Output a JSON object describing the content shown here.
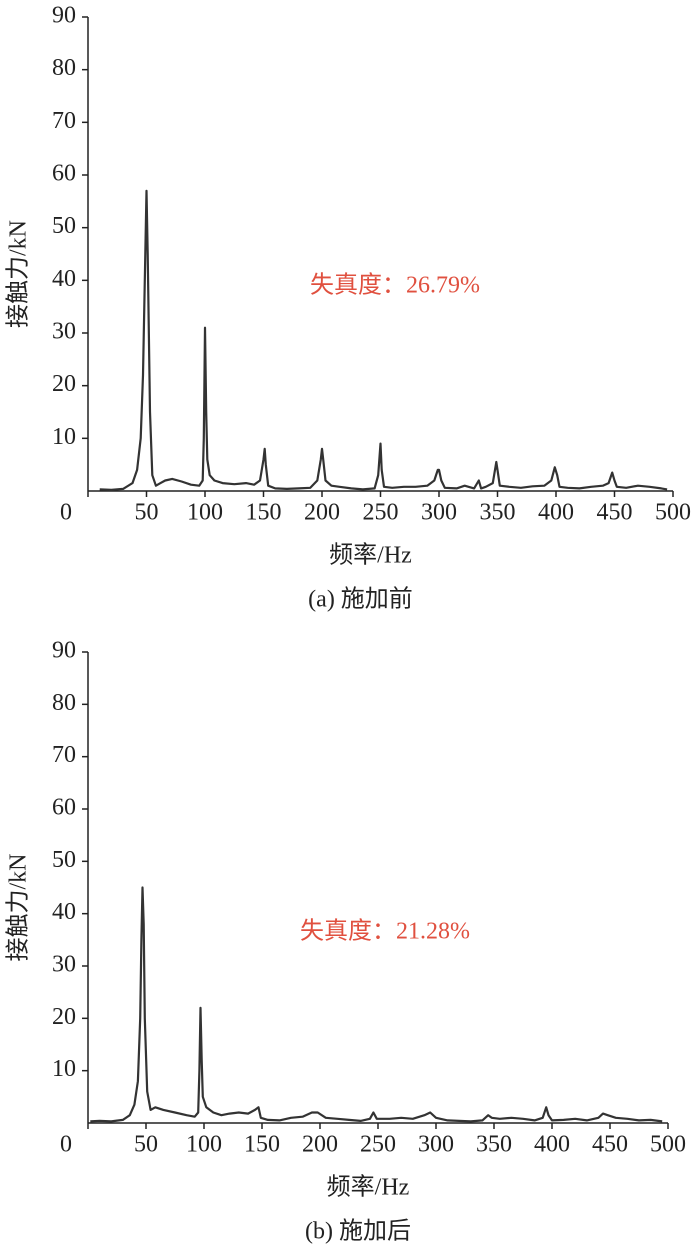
{
  "chart_data": [
    {
      "type": "line",
      "caption": "(a) 施加前",
      "xlabel": "频率/Hz",
      "ylabel": "接触力/kN",
      "annotation": "失真度：26.79%",
      "annotation_color": "#e0503f",
      "color": "#333333",
      "xlim": [
        0,
        500
      ],
      "ylim": [
        0,
        90
      ],
      "xticks": [
        0,
        50,
        100,
        150,
        200,
        250,
        300,
        350,
        400,
        450,
        500
      ],
      "yticks": [
        10,
        20,
        30,
        40,
        50,
        60,
        70,
        80,
        90
      ],
      "x": [
        10,
        20,
        30,
        38,
        42,
        45,
        47,
        49,
        50,
        51,
        53,
        55,
        58,
        62,
        66,
        72,
        80,
        88,
        95,
        98,
        99,
        100,
        101,
        102,
        104,
        108,
        115,
        125,
        135,
        142,
        147,
        150,
        151,
        152,
        154,
        160,
        170,
        180,
        190,
        196,
        199,
        200,
        201,
        203,
        208,
        215,
        225,
        235,
        245,
        248,
        250,
        251,
        253,
        260,
        270,
        280,
        290,
        296,
        299,
        300,
        302,
        305,
        315,
        322,
        330,
        334,
        336,
        340,
        346,
        349,
        350,
        352,
        360,
        370,
        380,
        390,
        396,
        399,
        401,
        403,
        410,
        420,
        430,
        440,
        445,
        448,
        450,
        452,
        460,
        470,
        480,
        490,
        495
      ],
      "values": [
        0.3,
        0.2,
        0.4,
        1.5,
        4,
        10,
        22,
        45,
        57,
        45,
        15,
        3,
        1,
        1.5,
        2,
        2.3,
        1.8,
        1.2,
        1,
        2,
        10,
        31,
        15,
        6,
        3,
        2,
        1.5,
        1.3,
        1.5,
        1.2,
        2,
        6,
        8,
        5,
        1,
        0.5,
        0.4,
        0.5,
        0.6,
        2,
        6,
        8,
        6,
        2,
        1,
        0.8,
        0.5,
        0.3,
        0.5,
        3,
        9,
        4,
        0.8,
        0.6,
        0.8,
        0.8,
        1,
        2,
        4,
        4,
        2,
        0.6,
        0.5,
        1,
        0.5,
        2,
        0.5,
        0.8,
        1.5,
        5.5,
        4,
        1,
        0.8,
        0.6,
        0.9,
        1,
        2,
        4.5,
        3,
        0.8,
        0.6,
        0.5,
        0.8,
        1,
        1.5,
        3.5,
        2,
        0.8,
        0.6,
        1,
        0.8,
        0.5,
        0.3
      ]
    },
    {
      "type": "line",
      "caption": "(b) 施加后",
      "xlabel": "频率/Hz",
      "ylabel": "接触力/kN",
      "annotation": "失真度：21.28%",
      "annotation_color": "#e0503f",
      "color": "#333333",
      "xlim": [
        0,
        500
      ],
      "ylim": [
        0,
        90
      ],
      "xticks": [
        0,
        50,
        100,
        150,
        200,
        250,
        300,
        350,
        400,
        450,
        500
      ],
      "yticks": [
        10,
        20,
        30,
        40,
        50,
        60,
        70,
        80,
        90
      ],
      "x": [
        2,
        10,
        20,
        30,
        36,
        40,
        43,
        45,
        46,
        47,
        48,
        49,
        51,
        54,
        58,
        65,
        75,
        85,
        92,
        95,
        96,
        97,
        98,
        99,
        102,
        108,
        115,
        122,
        130,
        138,
        144,
        147,
        149,
        155,
        165,
        175,
        185,
        193,
        198,
        205,
        215,
        225,
        235,
        243,
        246,
        249,
        260,
        270,
        280,
        290,
        295,
        300,
        310,
        320,
        330,
        340,
        345,
        348,
        355,
        365,
        375,
        385,
        392,
        395,
        397,
        400,
        410,
        420,
        430,
        440,
        444,
        448,
        455,
        465,
        475,
        485,
        495
      ],
      "values": [
        0.3,
        0.4,
        0.3,
        0.6,
        1.5,
        3.5,
        8,
        20,
        35,
        45,
        38,
        20,
        6,
        2.5,
        3,
        2.5,
        2,
        1.5,
        1.2,
        2,
        10,
        22,
        12,
        5,
        3,
        2,
        1.5,
        1.8,
        2,
        1.8,
        2.5,
        3,
        1,
        0.6,
        0.5,
        1,
        1.2,
        2,
        2,
        1,
        0.8,
        0.6,
        0.4,
        0.8,
        2,
        0.8,
        0.8,
        1,
        0.8,
        1.5,
        2,
        1,
        0.5,
        0.4,
        0.3,
        0.5,
        1.5,
        1,
        0.8,
        1,
        0.8,
        0.5,
        1,
        3,
        1.5,
        0.5,
        0.6,
        0.8,
        0.5,
        1,
        1.8,
        1.5,
        1,
        0.8,
        0.5,
        0.6,
        0.3
      ]
    }
  ]
}
